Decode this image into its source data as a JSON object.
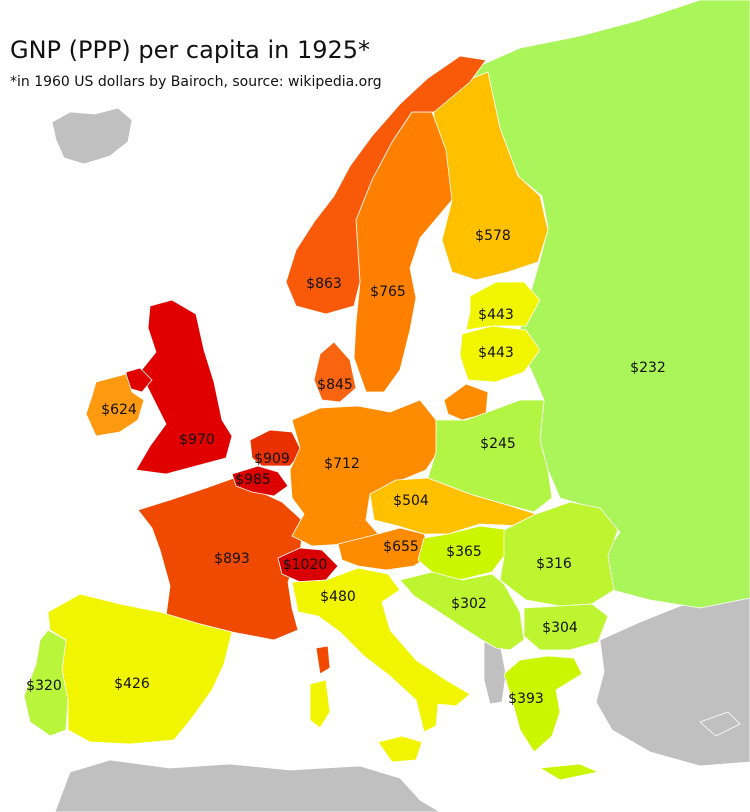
{
  "title": "GNP (PPP) per capita in 1925*",
  "subtitle": "*in 1960 US dollars by Bairoch, source: wikipedia.org",
  "colors": {
    "sea": "#ffffff",
    "no_data": "#c0c0c0",
    "dark_red": "#e00000",
    "red": "#ee3300",
    "red_orange": "#f85a0a",
    "orange": "#ff8c00",
    "light_orange": "#ffa200",
    "amber": "#ffc000",
    "yellow": "#f2f500",
    "yellow_green": "#ccf500",
    "light_green": "#b9f53a",
    "green": "#a9f55a"
  },
  "regions": [
    {
      "id": "russia",
      "value": "$232",
      "color": "#a9f55a"
    },
    {
      "id": "poland",
      "value": "$245",
      "color": "#b2f545"
    },
    {
      "id": "romania",
      "value": "$316",
      "color": "#bdf530"
    },
    {
      "id": "bulgaria",
      "value": "$304",
      "color": "#bdf530"
    },
    {
      "id": "yugoslavia",
      "value": "$302",
      "color": "#bdf530"
    },
    {
      "id": "portugal",
      "value": "$320",
      "color": "#b9f53a"
    },
    {
      "id": "hungary",
      "value": "$365",
      "color": "#ccf500"
    },
    {
      "id": "greece",
      "value": "$393",
      "color": "#ccf500"
    },
    {
      "id": "spain",
      "value": "$426",
      "color": "#f2f500"
    },
    {
      "id": "latvia",
      "value": "$443",
      "color": "#f2f500"
    },
    {
      "id": "lithuania",
      "value": "$443",
      "color": "#f2f500"
    },
    {
      "id": "italy",
      "value": "$480",
      "color": "#f2f500"
    },
    {
      "id": "czechoslovakia",
      "value": "$504",
      "color": "#ffc000"
    },
    {
      "id": "finland",
      "value": "$578",
      "color": "#ffc000"
    },
    {
      "id": "ireland",
      "value": "$624",
      "color": "#ff9a10"
    },
    {
      "id": "austria",
      "value": "$655",
      "color": "#ff8c00"
    },
    {
      "id": "germany",
      "value": "$712",
      "color": "#ff8c00"
    },
    {
      "id": "sweden",
      "value": "$765",
      "color": "#ff8000"
    },
    {
      "id": "denmark",
      "value": "$845",
      "color": "#f86410"
    },
    {
      "id": "norway",
      "value": "$863",
      "color": "#f85a0a"
    },
    {
      "id": "france",
      "value": "$893",
      "color": "#f04a00"
    },
    {
      "id": "netherlands",
      "value": "$909",
      "color": "#e83000"
    },
    {
      "id": "uk",
      "value": "$970",
      "color": "#e00000"
    },
    {
      "id": "belgium",
      "value": "$985",
      "color": "#dc0000"
    },
    {
      "id": "switzerland",
      "value": "$1020",
      "color": "#d80000"
    }
  ]
}
